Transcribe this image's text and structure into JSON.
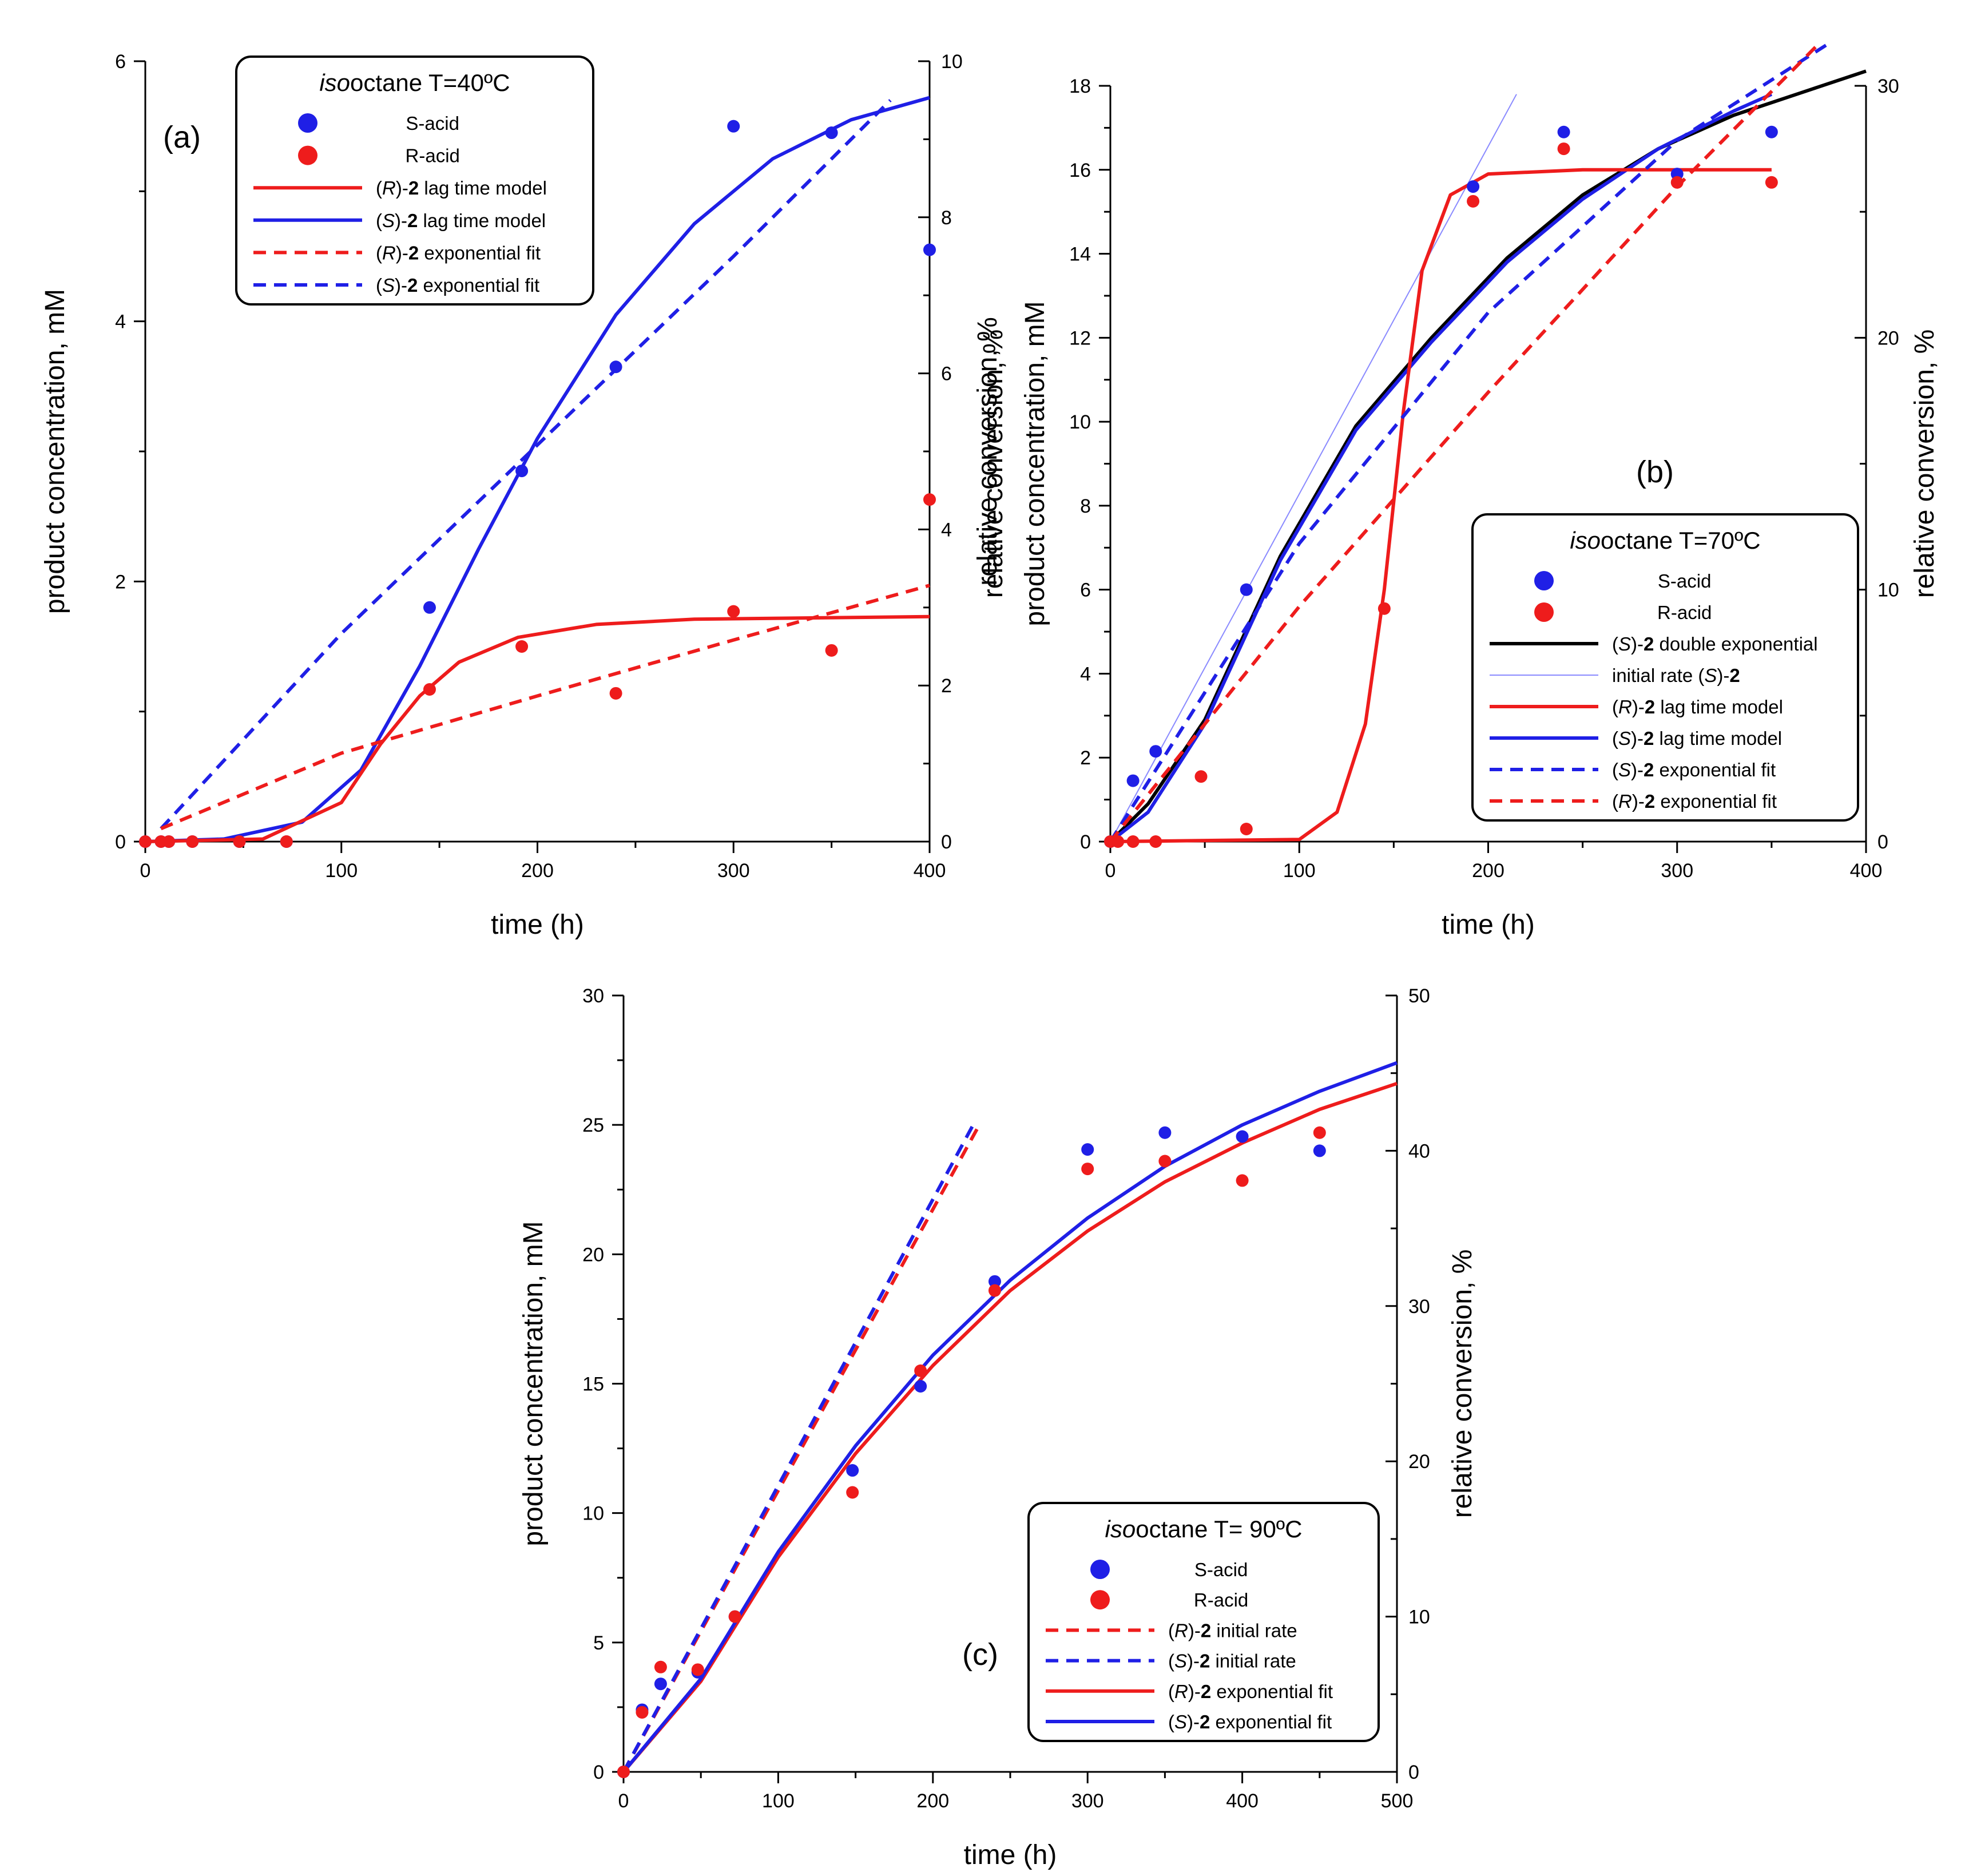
{
  "colors": {
    "blue": "#1f1fe6",
    "red": "#ee1c1c",
    "black": "#000000",
    "light_blue": "#8a8aff"
  },
  "chart_data": [
    {
      "type": "scatter",
      "panel": "(a)",
      "xlabel": "time (h)",
      "ylabel": "product concentration, mM",
      "y2label": "relative conversion, %",
      "xlim": [
        0,
        400
      ],
      "ylim": [
        0,
        6
      ],
      "y2lim": [
        0,
        10
      ],
      "xticks": [
        0,
        100,
        200,
        300,
        400
      ],
      "yticks": [
        0,
        2,
        4,
        6
      ],
      "y2ticks": [
        0,
        2,
        4,
        6,
        8,
        10
      ],
      "legend": {
        "title_italic": "iso",
        "title_rest": "octane T=40ºC",
        "entries": [
          {
            "prefix": "",
            "italic": "",
            "mid": "",
            "bold": "",
            "suffix": "S-acid",
            "kind": "marker",
            "color": "#1f1fe6"
          },
          {
            "prefix": "",
            "italic": "",
            "mid": "",
            "bold": "",
            "suffix": "R-acid",
            "kind": "marker",
            "color": "#ee1c1c"
          },
          {
            "prefix": "(",
            "italic": "R",
            "mid": ")-",
            "bold": "2",
            "suffix": " lag time model",
            "kind": "line",
            "color": "#ee1c1c",
            "dash": false
          },
          {
            "prefix": "(",
            "italic": "S",
            "mid": ")-",
            "bold": "2",
            "suffix": " lag time model",
            "kind": "line",
            "color": "#1f1fe6",
            "dash": false
          },
          {
            "prefix": "(",
            "italic": "R",
            "mid": ")-",
            "bold": "2",
            "suffix": " exponential fit",
            "kind": "line",
            "color": "#ee1c1c",
            "dash": true
          },
          {
            "prefix": "(",
            "italic": "S",
            "mid": ")-",
            "bold": "2",
            "suffix": " exponential fit",
            "kind": "line",
            "color": "#1f1fe6",
            "dash": true
          }
        ]
      },
      "series": [
        {
          "name": "S-acid",
          "kind": "points",
          "color": "#1f1fe6",
          "x": [
            0,
            8,
            12,
            24,
            48,
            72,
            145,
            192,
            240,
            300,
            350,
            400
          ],
          "y": [
            0,
            0,
            0,
            0,
            0,
            0,
            1.8,
            2.85,
            3.65,
            5.5,
            5.45,
            4.55
          ]
        },
        {
          "name": "R-acid",
          "kind": "points",
          "color": "#ee1c1c",
          "x": [
            0,
            8,
            12,
            24,
            48,
            72,
            145,
            192,
            240,
            300,
            350,
            400
          ],
          "y": [
            0,
            0,
            0,
            0,
            0,
            0,
            1.17,
            1.5,
            1.14,
            1.77,
            1.47,
            2.63
          ]
        },
        {
          "name": "(S)-2 lag time model",
          "kind": "line",
          "color": "#1f1fe6",
          "dash": false,
          "x": [
            0,
            40,
            80,
            110,
            140,
            170,
            200,
            240,
            280,
            320,
            360,
            400
          ],
          "y": [
            0,
            0.02,
            0.15,
            0.55,
            1.35,
            2.25,
            3.1,
            4.05,
            4.75,
            5.25,
            5.55,
            5.72
          ]
        },
        {
          "name": "(R)-2 lag time model",
          "kind": "line",
          "color": "#ee1c1c",
          "dash": false,
          "x": [
            0,
            60,
            100,
            120,
            140,
            160,
            190,
            230,
            280,
            340,
            400
          ],
          "y": [
            0,
            0.02,
            0.3,
            0.75,
            1.12,
            1.38,
            1.57,
            1.67,
            1.71,
            1.72,
            1.73
          ]
        },
        {
          "name": "(S)-2 exponential fit",
          "kind": "line",
          "color": "#1f1fe6",
          "dash": true,
          "x": [
            8,
            100,
            200,
            300,
            380
          ],
          "y": [
            0.1,
            1.6,
            3.05,
            4.5,
            5.7
          ]
        },
        {
          "name": "(R)-2 exponential fit",
          "kind": "line",
          "color": "#ee1c1c",
          "dash": true,
          "x": [
            8,
            100,
            200,
            300,
            400
          ],
          "y": [
            0.1,
            0.68,
            1.12,
            1.55,
            1.97
          ]
        }
      ]
    },
    {
      "type": "scatter",
      "panel": "(b)",
      "xlabel": "time (h)",
      "ylabel": "product concentration, mM",
      "y2label": "relative conversion, %",
      "extra_left_label": "relative conversion, %",
      "xlim": [
        0,
        400
      ],
      "ylim": [
        0,
        18
      ],
      "y2lim": [
        0,
        30
      ],
      "xticks": [
        0,
        100,
        200,
        300,
        400
      ],
      "yticks": [
        0,
        2,
        4,
        6,
        8,
        10,
        12,
        14,
        16,
        18
      ],
      "y2ticks": [
        0,
        10,
        20,
        30
      ],
      "legend": {
        "title_italic": "iso",
        "title_rest": "octane T=70ºC",
        "entries": [
          {
            "prefix": "",
            "italic": "",
            "mid": "",
            "bold": "",
            "suffix": "S-acid",
            "kind": "marker",
            "color": "#1f1fe6"
          },
          {
            "prefix": "",
            "italic": "",
            "mid": "",
            "bold": "",
            "suffix": "R-acid",
            "kind": "marker",
            "color": "#ee1c1c"
          },
          {
            "prefix": "(",
            "italic": "S",
            "mid": ")-",
            "bold": "2",
            "suffix": " double exponential",
            "kind": "line",
            "color": "#000000",
            "dash": false
          },
          {
            "prefix": "initial rate (",
            "italic": "S",
            "mid": ")-",
            "bold": "2",
            "suffix": "",
            "kind": "thin",
            "color": "#8a8aff",
            "dash": false
          },
          {
            "prefix": "(",
            "italic": "R",
            "mid": ")-",
            "bold": "2",
            "suffix": " lag time model",
            "kind": "line",
            "color": "#ee1c1c",
            "dash": false
          },
          {
            "prefix": "(",
            "italic": "S",
            "mid": ")-",
            "bold": "2",
            "suffix": " lag time model",
            "kind": "line",
            "color": "#1f1fe6",
            "dash": false
          },
          {
            "prefix": "(",
            "italic": "S",
            "mid": ")-",
            "bold": "2",
            "suffix": " exponential fit",
            "kind": "line",
            "color": "#1f1fe6",
            "dash": true
          },
          {
            "prefix": "(",
            "italic": "R",
            "mid": ")-",
            "bold": "2",
            "suffix": " exponential fit",
            "kind": "line",
            "color": "#ee1c1c",
            "dash": true
          }
        ]
      },
      "series": [
        {
          "name": "S-acid",
          "kind": "points",
          "color": "#1f1fe6",
          "x": [
            0,
            12,
            24,
            72,
            192,
            240,
            300,
            350
          ],
          "y": [
            0,
            1.45,
            2.15,
            6.0,
            15.6,
            16.9,
            15.9,
            16.9
          ]
        },
        {
          "name": "R-acid",
          "kind": "points",
          "color": "#ee1c1c",
          "x": [
            0,
            4,
            12,
            24,
            48,
            72,
            145,
            192,
            240,
            300,
            350
          ],
          "y": [
            0,
            0,
            0,
            0,
            1.55,
            0.3,
            5.55,
            15.25,
            16.5,
            15.7,
            15.7
          ]
        },
        {
          "name": "initial rate (S)-2",
          "kind": "line",
          "color": "#8a8aff",
          "dash": false,
          "thin": true,
          "x": [
            0,
            215
          ],
          "y": [
            0,
            17.8
          ]
        },
        {
          "name": "(S)-2 double exponential",
          "kind": "line",
          "color": "#000000",
          "dash": false,
          "x": [
            0,
            20,
            50,
            90,
            130,
            170,
            210,
            250,
            290,
            330,
            370,
            400
          ],
          "y": [
            0,
            0.9,
            2.9,
            6.8,
            9.9,
            12.0,
            13.9,
            15.4,
            16.5,
            17.3,
            17.9,
            18.35
          ]
        },
        {
          "name": "(S)-2 lag time model",
          "kind": "line",
          "color": "#1f1fe6",
          "dash": false,
          "x": [
            0,
            20,
            50,
            90,
            130,
            170,
            210,
            250,
            290,
            330,
            350
          ],
          "y": [
            0,
            0.7,
            2.8,
            6.7,
            9.8,
            11.9,
            13.8,
            15.3,
            16.5,
            17.4,
            17.8
          ]
        },
        {
          "name": "(R)-2 lag time model",
          "kind": "line",
          "color": "#ee1c1c",
          "dash": false,
          "x": [
            0,
            100,
            120,
            135,
            145,
            155,
            165,
            180,
            200,
            250,
            350
          ],
          "y": [
            0,
            0.05,
            0.7,
            2.8,
            6.0,
            10.2,
            13.6,
            15.4,
            15.9,
            16.0,
            16.0
          ]
        },
        {
          "name": "(S)-2 exponential fit",
          "kind": "line",
          "color": "#1f1fe6",
          "dash": true,
          "x": [
            0,
            100,
            200,
            300,
            380
          ],
          "y": [
            0,
            7.1,
            12.6,
            16.7,
            19.0
          ]
        },
        {
          "name": "(R)-2 exponential fit",
          "kind": "line",
          "color": "#ee1c1c",
          "dash": true,
          "x": [
            0,
            100,
            200,
            300,
            375
          ],
          "y": [
            0,
            5.6,
            10.7,
            15.6,
            19.0
          ]
        }
      ]
    },
    {
      "type": "scatter",
      "panel": "(c)",
      "xlabel": "time (h)",
      "ylabel": "product concentration, mM",
      "y2label": "relative conversion, %",
      "xlim": [
        0,
        500
      ],
      "ylim": [
        0,
        30
      ],
      "y2lim": [
        0,
        50
      ],
      "xticks": [
        0,
        100,
        200,
        300,
        400,
        500
      ],
      "yticks": [
        0,
        5,
        10,
        15,
        20,
        25,
        30
      ],
      "y2ticks": [
        0,
        10,
        20,
        30,
        40,
        50
      ],
      "legend": {
        "title_italic": "iso",
        "title_rest": "octane T= 90ºC",
        "entries": [
          {
            "prefix": "",
            "italic": "",
            "mid": "",
            "bold": "",
            "suffix": "S-acid",
            "kind": "marker",
            "color": "#1f1fe6"
          },
          {
            "prefix": "",
            "italic": "",
            "mid": "",
            "bold": "",
            "suffix": "R-acid",
            "kind": "marker",
            "color": "#ee1c1c"
          },
          {
            "prefix": "(",
            "italic": "R",
            "mid": ")-",
            "bold": "2",
            "suffix": " initial rate",
            "kind": "line",
            "color": "#ee1c1c",
            "dash": true
          },
          {
            "prefix": "(",
            "italic": "S",
            "mid": ")-",
            "bold": "2",
            "suffix": " initial rate",
            "kind": "line",
            "color": "#1f1fe6",
            "dash": true
          },
          {
            "prefix": "(",
            "italic": "R",
            "mid": ")-",
            "bold": "2",
            "suffix": " exponential fit",
            "kind": "line",
            "color": "#ee1c1c",
            "dash": false
          },
          {
            "prefix": "(",
            "italic": "S",
            "mid": ")-",
            "bold": "2",
            "suffix": " exponential fit",
            "kind": "line",
            "color": "#1f1fe6",
            "dash": false
          }
        ]
      },
      "series": [
        {
          "name": "S-acid",
          "kind": "points",
          "color": "#1f1fe6",
          "x": [
            0,
            12,
            24,
            48,
            72,
            148,
            192,
            240,
            300,
            350,
            400,
            450
          ],
          "y": [
            0,
            2.4,
            3.4,
            3.85,
            6.0,
            11.65,
            14.9,
            18.95,
            24.05,
            24.7,
            24.55,
            24.0
          ]
        },
        {
          "name": "R-acid",
          "kind": "points",
          "color": "#ee1c1c",
          "x": [
            0,
            12,
            24,
            48,
            72,
            148,
            192,
            240,
            300,
            350,
            400,
            450
          ],
          "y": [
            0,
            2.3,
            4.05,
            3.95,
            6.0,
            10.8,
            15.5,
            18.6,
            23.3,
            23.6,
            22.85,
            24.7
          ]
        },
        {
          "name": "(R)-2 initial rate",
          "kind": "line",
          "color": "#ee1c1c",
          "dash": true,
          "x": [
            0,
            230
          ],
          "y": [
            0,
            25.0
          ]
        },
        {
          "name": "(S)-2 initial rate",
          "kind": "line",
          "color": "#1f1fe6",
          "dash": true,
          "x": [
            0,
            226
          ],
          "y": [
            0,
            25.0
          ]
        },
        {
          "name": "(R)-2 exponential fit",
          "kind": "line",
          "color": "#ee1c1c",
          "dash": false,
          "x": [
            0,
            50,
            100,
            150,
            200,
            250,
            300,
            350,
            400,
            450,
            500
          ],
          "y": [
            0,
            3.5,
            8.3,
            12.3,
            15.7,
            18.6,
            20.9,
            22.8,
            24.3,
            25.6,
            26.6
          ]
        },
        {
          "name": "(S)-2 exponential fit",
          "kind": "line",
          "color": "#1f1fe6",
          "dash": false,
          "x": [
            0,
            50,
            100,
            150,
            200,
            250,
            300,
            350,
            400,
            450,
            500
          ],
          "y": [
            0,
            3.6,
            8.5,
            12.6,
            16.1,
            19.0,
            21.4,
            23.4,
            25.0,
            26.3,
            27.4
          ]
        }
      ]
    }
  ]
}
